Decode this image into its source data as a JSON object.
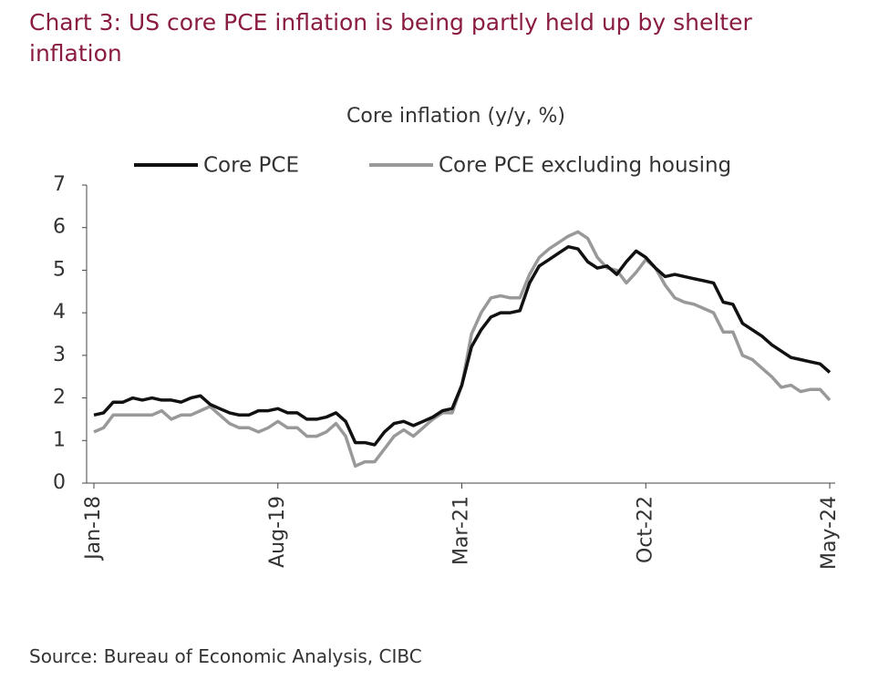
{
  "chart_data": {
    "type": "line",
    "title": "Chart 3: US core PCE inflation is being partly held up by shelter inflation",
    "subtitle": "Core inflation (y/y, %)",
    "source": "Source: Bureau of Economic Analysis, CIBC",
    "categories": [
      "Jan-18",
      null,
      null,
      null,
      null,
      null,
      null,
      null,
      null,
      null,
      null,
      null,
      null,
      null,
      null,
      null,
      null,
      null,
      null,
      "Aug-19",
      null,
      null,
      null,
      null,
      null,
      null,
      null,
      null,
      null,
      null,
      null,
      null,
      null,
      null,
      null,
      null,
      null,
      null,
      "Mar-21",
      null,
      null,
      null,
      null,
      null,
      null,
      null,
      null,
      null,
      null,
      null,
      null,
      null,
      null,
      null,
      null,
      null,
      null,
      "Oct-22",
      null,
      null,
      null,
      null,
      null,
      null,
      null,
      null,
      null,
      null,
      null,
      null,
      null,
      null,
      null,
      null,
      null,
      null,
      "May-24"
    ],
    "series": [
      {
        "name": "Core PCE",
        "color": "#111111",
        "values": [
          1.6,
          1.65,
          1.9,
          1.9,
          2.0,
          1.95,
          2.0,
          1.95,
          1.95,
          1.9,
          2.0,
          2.05,
          1.85,
          1.75,
          1.65,
          1.6,
          1.6,
          1.7,
          1.7,
          1.75,
          1.65,
          1.65,
          1.5,
          1.5,
          1.55,
          1.65,
          1.45,
          0.95,
          0.95,
          0.9,
          1.2,
          1.4,
          1.45,
          1.35,
          1.45,
          1.55,
          1.7,
          1.75,
          2.3,
          3.2,
          3.6,
          3.9,
          4.0,
          4.0,
          4.05,
          4.7,
          5.1,
          5.25,
          5.4,
          5.55,
          5.5,
          5.2,
          5.05,
          5.1,
          4.9,
          5.2,
          5.45,
          5.3,
          5.05,
          4.85,
          4.9,
          4.85,
          4.8,
          4.75,
          4.7,
          4.25,
          4.2,
          3.75,
          3.6,
          3.45,
          3.25,
          3.1,
          2.95,
          2.9,
          2.85,
          2.8,
          2.6
        ]
      },
      {
        "name": "Core PCE excluding housing",
        "color": "#999999",
        "values": [
          1.2,
          1.3,
          1.6,
          1.6,
          1.6,
          1.6,
          1.6,
          1.7,
          1.5,
          1.6,
          1.6,
          1.7,
          1.8,
          1.6,
          1.4,
          1.3,
          1.3,
          1.2,
          1.3,
          1.45,
          1.3,
          1.3,
          1.1,
          1.1,
          1.2,
          1.4,
          1.1,
          0.4,
          0.5,
          0.5,
          0.8,
          1.1,
          1.25,
          1.1,
          1.3,
          1.5,
          1.65,
          1.65,
          2.3,
          3.5,
          4.0,
          4.35,
          4.4,
          4.35,
          4.35,
          4.9,
          5.3,
          5.5,
          5.65,
          5.8,
          5.9,
          5.75,
          5.3,
          5.05,
          5.0,
          4.7,
          4.95,
          5.25,
          5.05,
          4.65,
          4.35,
          4.25,
          4.2,
          4.1,
          4.0,
          3.55,
          3.55,
          3.0,
          2.9,
          2.7,
          2.5,
          2.25,
          2.3,
          2.15,
          2.2,
          2.2,
          1.95
        ]
      }
    ],
    "ylim": [
      0,
      7
    ],
    "yticks": [
      0,
      1,
      2,
      3,
      4,
      5,
      6,
      7
    ],
    "grid": false,
    "legend": "top"
  }
}
